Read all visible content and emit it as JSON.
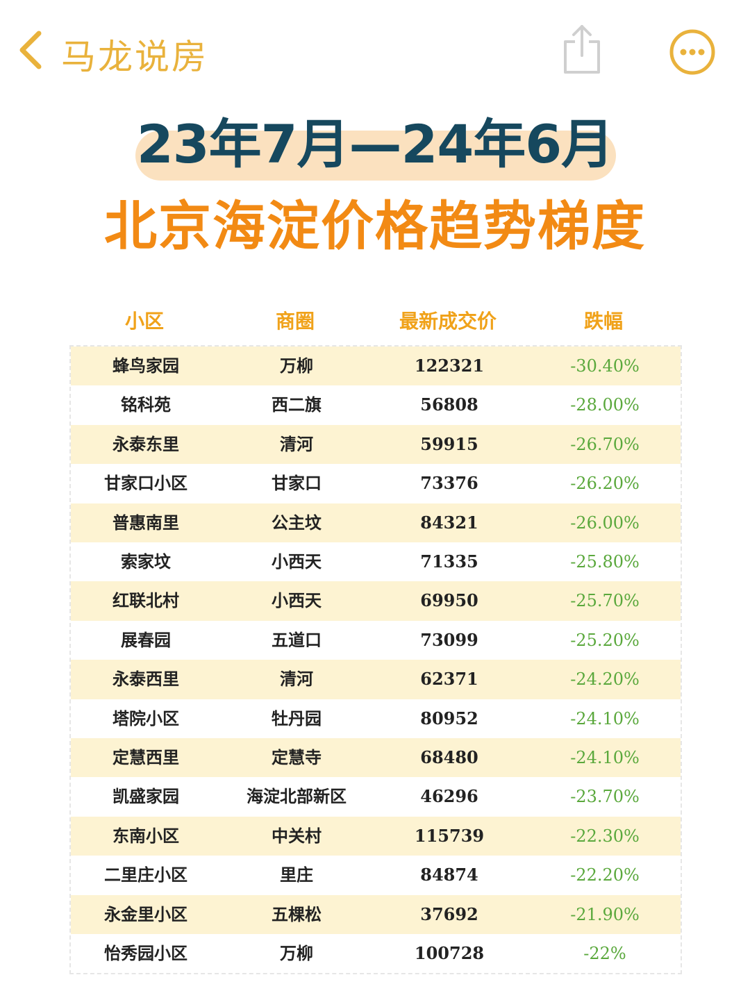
{
  "topbar": {
    "title": "马龙说房",
    "back_icon": "chevron-left-icon",
    "share_icon": "share-icon",
    "more_icon": "more-horizontal-circle-icon",
    "accent_color": "#e9b23c"
  },
  "headline": "23年7月—24年6月",
  "subheadline": "北京海淀价格趋势梯度",
  "colors": {
    "headline": "#16485e",
    "headline_highlight": "#fbe1bf",
    "subheadline": "#f28a14",
    "header_text": "#f0a21a",
    "row_stripe": "#fdf3d2",
    "change_text": "#5aa83c"
  },
  "table": {
    "columns": [
      "小区",
      "商圈",
      "最新成交价",
      "跌幅"
    ],
    "rows": [
      {
        "community": "蜂鸟家园",
        "district": "万柳",
        "price": "122321",
        "change": "-30.40%"
      },
      {
        "community": "铭科苑",
        "district": "西二旗",
        "price": "56808",
        "change": "-28.00%"
      },
      {
        "community": "永泰东里",
        "district": "清河",
        "price": "59915",
        "change": "-26.70%"
      },
      {
        "community": "甘家口小区",
        "district": "甘家口",
        "price": "73376",
        "change": "-26.20%"
      },
      {
        "community": "普惠南里",
        "district": "公主坟",
        "price": "84321",
        "change": "-26.00%"
      },
      {
        "community": "索家坟",
        "district": "小西天",
        "price": "71335",
        "change": "-25.80%"
      },
      {
        "community": "红联北村",
        "district": "小西天",
        "price": "69950",
        "change": "-25.70%"
      },
      {
        "community": "展春园",
        "district": "五道口",
        "price": "73099",
        "change": "-25.20%"
      },
      {
        "community": "永泰西里",
        "district": "清河",
        "price": "62371",
        "change": "-24.20%"
      },
      {
        "community": "塔院小区",
        "district": "牡丹园",
        "price": "80952",
        "change": "-24.10%"
      },
      {
        "community": "定慧西里",
        "district": "定慧寺",
        "price": "68480",
        "change": "-24.10%"
      },
      {
        "community": "凯盛家园",
        "district": "海淀北部新区",
        "price": "46296",
        "change": "-23.70%"
      },
      {
        "community": "东南小区",
        "district": "中关村",
        "price": "115739",
        "change": "-22.30%"
      },
      {
        "community": "二里庄小区",
        "district": "里庄",
        "price": "84874",
        "change": "-22.20%"
      },
      {
        "community": "永金里小区",
        "district": "五棵松",
        "price": "37692",
        "change": "-21.90%"
      },
      {
        "community": "怡秀园小区",
        "district": "万柳",
        "price": "100728",
        "change": "-22%"
      }
    ]
  }
}
